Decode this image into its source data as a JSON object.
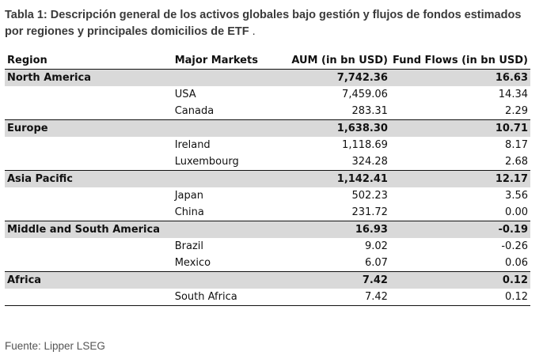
{
  "title": {
    "main": "Tabla 1: Descripción general de los activos globales bajo gestión y flujos de fondos estimados por regiones y principales domicilios de ETF",
    "suffix": " ."
  },
  "table": {
    "headers": {
      "region": "Region",
      "markets": "Major Markets",
      "aum": "AUM (in bn USD)",
      "flows": "Fund Flows (in bn USD)"
    },
    "regions": [
      {
        "name": "North America",
        "aum": "7,742.36",
        "flows": "16.63",
        "countries": [
          {
            "name": "USA",
            "aum": "7,459.06",
            "flows": "14.34"
          },
          {
            "name": "Canada",
            "aum": "283.31",
            "flows": "2.29"
          }
        ]
      },
      {
        "name": "Europe",
        "aum": "1,638.30",
        "flows": "10.71",
        "countries": [
          {
            "name": "Ireland",
            "aum": "1,118.69",
            "flows": "8.17"
          },
          {
            "name": "Luxembourg",
            "aum": "324.28",
            "flows": "2.68"
          }
        ]
      },
      {
        "name": "Asia Pacific",
        "aum": "1,142.41",
        "flows": "12.17",
        "countries": [
          {
            "name": "Japan",
            "aum": "502.23",
            "flows": "3.56"
          },
          {
            "name": "China",
            "aum": "231.72",
            "flows": "0.00"
          }
        ]
      },
      {
        "name": "Middle and South America",
        "aum": "16.93",
        "flows": "-0.19",
        "countries": [
          {
            "name": "Brazil",
            "aum": "9.02",
            "flows": "-0.26"
          },
          {
            "name": "Mexico",
            "aum": "6.07",
            "flows": "0.06"
          }
        ]
      },
      {
        "name": "Africa",
        "aum": "7.42",
        "flows": "0.12",
        "countries": [
          {
            "name": "South Africa",
            "aum": "7.42",
            "flows": "0.12"
          }
        ]
      }
    ]
  },
  "source": "Fuente: Lipper LSEG"
}
